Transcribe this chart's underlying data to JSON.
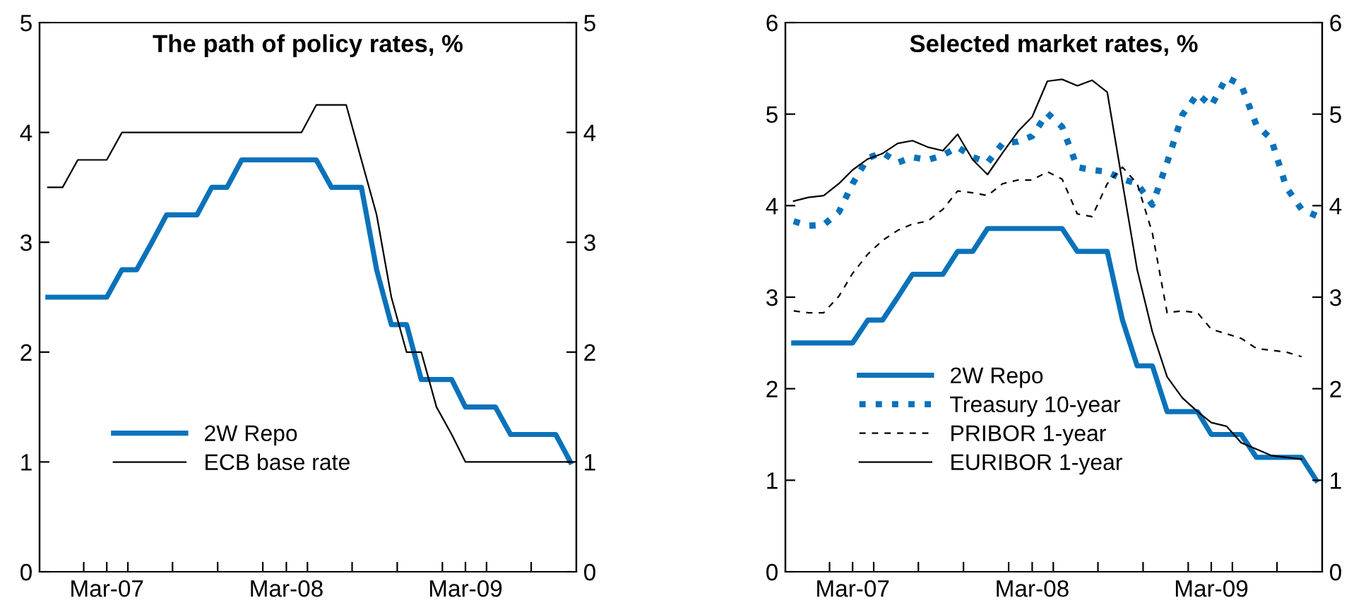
{
  "chart_data": [
    {
      "type": "line",
      "title": "The path of policy rates, %",
      "x": [
        "2006-11",
        "2006-12",
        "2007-01",
        "2007-02",
        "2007-03",
        "2007-04",
        "2007-05",
        "2007-06",
        "2007-07",
        "2007-08",
        "2007-09",
        "2007-10",
        "2007-11",
        "2007-12",
        "2008-01",
        "2008-02",
        "2008-03",
        "2008-04",
        "2008-05",
        "2008-06",
        "2008-07",
        "2008-08",
        "2008-09",
        "2008-10",
        "2008-11",
        "2008-12",
        "2009-01",
        "2009-02",
        "2009-03",
        "2009-04",
        "2009-05",
        "2009-06",
        "2009-07",
        "2009-08",
        "2009-09",
        "2009-10"
      ],
      "series": [
        {
          "name": "2W Repo",
          "color": "#0a72ba",
          "line_style": "solid",
          "values": [
            2.5,
            2.5,
            2.5,
            2.5,
            2.5,
            2.75,
            2.75,
            3.0,
            3.25,
            3.25,
            3.25,
            3.5,
            3.5,
            3.75,
            3.75,
            3.75,
            3.75,
            3.75,
            3.75,
            3.5,
            3.5,
            3.5,
            2.75,
            2.25,
            2.25,
            1.75,
            1.75,
            1.75,
            1.5,
            1.5,
            1.5,
            1.25,
            1.25,
            1.25,
            1.25,
            1.0
          ]
        },
        {
          "name": "ECB base rate",
          "color": "#000000",
          "line_style": "solid",
          "values": [
            3.5,
            3.5,
            3.75,
            3.75,
            3.75,
            4.0,
            4.0,
            4.0,
            4.0,
            4.0,
            4.0,
            4.0,
            4.0,
            4.0,
            4.0,
            4.0,
            4.0,
            4.0,
            4.25,
            4.25,
            4.25,
            3.75,
            3.25,
            2.5,
            2.0,
            2.0,
            1.5,
            1.25,
            1.0,
            1.0,
            1.0,
            1.0,
            1.0,
            1.0,
            1.0,
            1.0
          ]
        }
      ],
      "xlim": [
        "2006-10-15",
        "2009-10-13"
      ],
      "xticks": [
        {
          "value": "2007-01-13",
          "label": null
        },
        {
          "value": "2007-03",
          "label": "Mar-07"
        },
        {
          "value": "2007-04-13",
          "label": null
        },
        {
          "value": "2007-07-13",
          "label": null
        },
        {
          "value": "2007-10-13",
          "label": null
        },
        {
          "value": "2008-01-13",
          "label": null
        },
        {
          "value": "2008-03",
          "label": "Mar-08"
        },
        {
          "value": "2008-04-13",
          "label": null
        },
        {
          "value": "2008-07-13",
          "label": null
        },
        {
          "value": "2008-10-13",
          "label": null
        },
        {
          "value": "2009-01-13",
          "label": null
        },
        {
          "value": "2009-03",
          "label": "Mar-09"
        },
        {
          "value": "2009-04-13",
          "label": null
        },
        {
          "value": "2009-07-13",
          "label": null
        }
      ],
      "ylim": [
        0,
        5
      ],
      "yticks": [
        0,
        1,
        2,
        3,
        4,
        5
      ],
      "y2lim": [
        0,
        5
      ],
      "y2ticks": [
        0,
        1,
        2,
        3,
        4,
        5
      ],
      "grid": false,
      "legend": "bottom left"
    },
    {
      "type": "line",
      "title": "Selected market rates, %",
      "x": [
        "2006-11",
        "2006-12",
        "2007-01",
        "2007-02",
        "2007-03",
        "2007-04",
        "2007-05",
        "2007-06",
        "2007-07",
        "2007-08",
        "2007-09",
        "2007-10",
        "2007-11",
        "2007-12",
        "2008-01",
        "2008-02",
        "2008-03",
        "2008-04",
        "2008-05",
        "2008-06",
        "2008-07",
        "2008-08",
        "2008-09",
        "2008-10",
        "2008-11",
        "2008-12",
        "2009-01",
        "2009-02",
        "2009-03",
        "2009-04",
        "2009-05",
        "2009-06",
        "2009-07",
        "2009-08",
        "2009-09",
        "2009-10"
      ],
      "series": [
        {
          "name": "2W Repo",
          "color": "#0a72ba",
          "line_style": "solid",
          "values": [
            2.5,
            2.5,
            2.5,
            2.5,
            2.5,
            2.75,
            2.75,
            3.0,
            3.25,
            3.25,
            3.25,
            3.5,
            3.5,
            3.75,
            3.75,
            3.75,
            3.75,
            3.75,
            3.75,
            3.5,
            3.5,
            3.5,
            2.75,
            2.25,
            2.25,
            1.75,
            1.75,
            1.75,
            1.5,
            1.5,
            1.5,
            1.25,
            1.25,
            1.25,
            1.25,
            1.0
          ]
        },
        {
          "name": "Treasury 10-year",
          "color": "#0a72ba",
          "line_style": "dotted",
          "values": [
            3.83,
            3.78,
            3.79,
            3.93,
            4.24,
            4.52,
            4.58,
            4.47,
            4.53,
            4.5,
            4.55,
            4.64,
            4.53,
            4.47,
            4.68,
            4.7,
            4.76,
            5.01,
            4.86,
            4.42,
            4.39,
            4.37,
            4.29,
            4.24,
            4.01,
            4.47,
            4.99,
            5.22,
            5.09,
            5.4,
            5.32,
            4.88,
            4.73,
            4.2,
            3.96,
            3.89
          ]
        },
        {
          "name": "PRIBOR 1-year",
          "color": "#000000",
          "line_style": "dashed",
          "values": [
            2.85,
            2.83,
            2.83,
            3.01,
            3.26,
            3.47,
            3.62,
            3.73,
            3.8,
            3.83,
            3.96,
            4.16,
            4.14,
            4.11,
            4.24,
            4.28,
            4.28,
            4.37,
            4.29,
            3.91,
            3.88,
            4.24,
            4.42,
            4.24,
            3.7,
            2.83,
            2.85,
            2.83,
            2.65,
            2.6,
            2.55,
            2.44,
            2.42,
            2.4,
            2.35,
            null
          ]
        },
        {
          "name": "EURIBOR 1-year",
          "color": "#000000",
          "line_style": "solid",
          "values": [
            4.05,
            4.09,
            4.11,
            4.24,
            4.39,
            4.51,
            4.57,
            4.68,
            4.71,
            4.64,
            4.6,
            4.78,
            4.5,
            4.34,
            4.58,
            4.81,
            4.97,
            5.36,
            5.38,
            5.31,
            5.37,
            5.24,
            4.25,
            3.3,
            2.62,
            2.13,
            1.9,
            1.75,
            1.63,
            1.59,
            1.41,
            1.34,
            1.27,
            1.25,
            1.23,
            null
          ]
        }
      ],
      "xlim": [
        "2006-10-15",
        "2009-10-13"
      ],
      "xticks": [
        {
          "value": "2007-01-13",
          "label": null
        },
        {
          "value": "2007-03",
          "label": "Mar-07"
        },
        {
          "value": "2007-04-13",
          "label": null
        },
        {
          "value": "2007-07-13",
          "label": null
        },
        {
          "value": "2007-10-13",
          "label": null
        },
        {
          "value": "2008-01-13",
          "label": null
        },
        {
          "value": "2008-03",
          "label": "Mar-08"
        },
        {
          "value": "2008-04-13",
          "label": null
        },
        {
          "value": "2008-07-13",
          "label": null
        },
        {
          "value": "2008-10-13",
          "label": null
        },
        {
          "value": "2009-01-13",
          "label": null
        },
        {
          "value": "2009-03",
          "label": "Mar-09"
        },
        {
          "value": "2009-04-13",
          "label": null
        },
        {
          "value": "2009-07-13",
          "label": null
        }
      ],
      "ylim": [
        0,
        6
      ],
      "yticks": [
        0,
        1,
        2,
        3,
        4,
        5,
        6
      ],
      "y2lim": [
        0,
        6
      ],
      "y2ticks": [
        0,
        1,
        2,
        3,
        4,
        5,
        6
      ],
      "grid": false,
      "legend": "bottom left"
    }
  ]
}
